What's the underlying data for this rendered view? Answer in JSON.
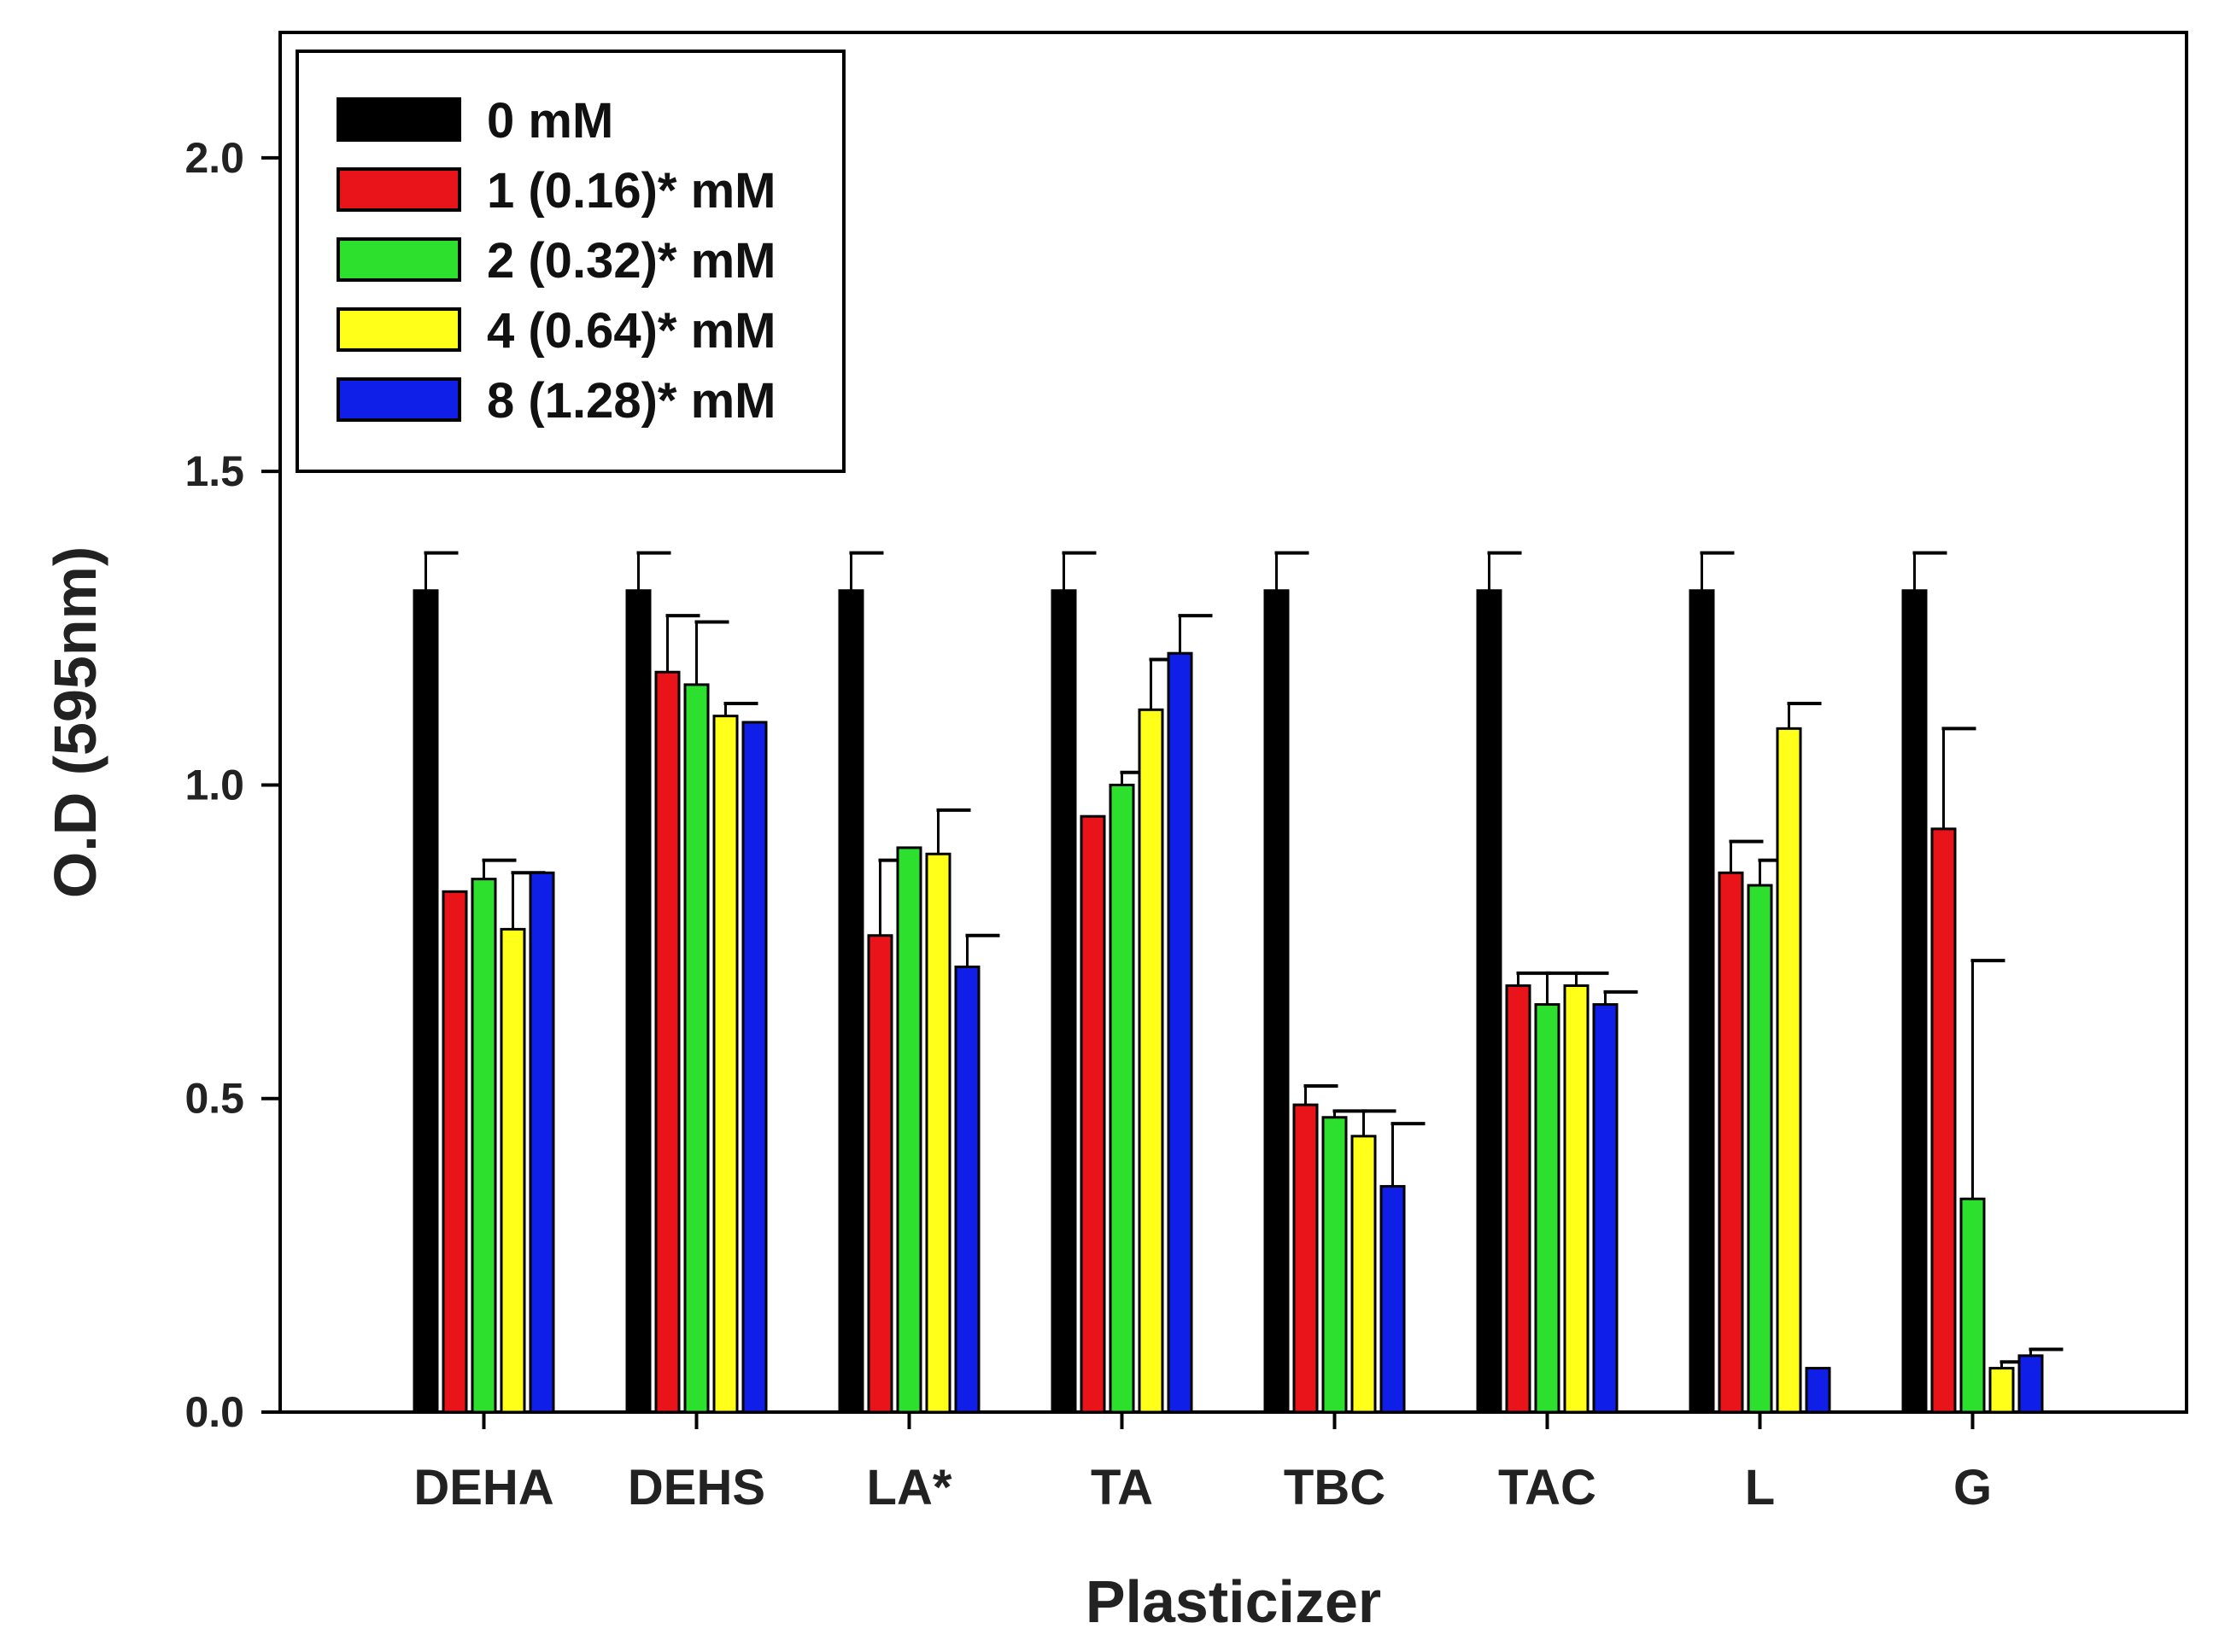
{
  "chart_data": {
    "type": "bar",
    "xlabel": "Plasticizer",
    "ylabel": "O.D (595nm)",
    "ylim": [
      0,
      2.2
    ],
    "yticks": [
      "0.0",
      "0.5",
      "1.0",
      "1.5",
      "2.0"
    ],
    "legend_position": "top-left",
    "categories": [
      "DEHA",
      "DEHS",
      "LA*",
      "TA",
      "TBC",
      "TAC",
      "L",
      "G"
    ],
    "series": [
      {
        "name": "0 mM",
        "color": "#000000",
        "values": [
          1.31,
          1.31,
          1.31,
          1.31,
          1.31,
          1.31,
          1.31,
          1.31
        ],
        "errors": [
          0.06,
          0.06,
          0.06,
          0.06,
          0.06,
          0.06,
          0.06,
          0.06
        ]
      },
      {
        "name": "1 (0.16)* mM",
        "color": "#e8141a",
        "values": [
          0.83,
          1.18,
          0.76,
          0.95,
          0.49,
          0.68,
          0.86,
          0.93
        ],
        "errors": [
          0.0,
          0.09,
          0.12,
          0.0,
          0.03,
          0.02,
          0.05,
          0.16
        ]
      },
      {
        "name": "2 (0.32)* mM",
        "color": "#2ee02e",
        "values": [
          0.85,
          1.16,
          0.9,
          1.0,
          0.47,
          0.65,
          0.84,
          0.34
        ],
        "errors": [
          0.03,
          0.1,
          0.0,
          0.02,
          0.01,
          0.05,
          0.04,
          0.38
        ]
      },
      {
        "name": "4 (0.64)* mM",
        "color": "#ffff1a",
        "values": [
          0.77,
          1.11,
          0.89,
          1.12,
          0.44,
          0.68,
          1.09,
          0.07
        ],
        "errors": [
          0.09,
          0.02,
          0.07,
          0.08,
          0.04,
          0.02,
          0.04,
          0.01
        ]
      },
      {
        "name": "8 (1.28)* mM",
        "color": "#0f1fe8",
        "values": [
          0.86,
          1.1,
          0.71,
          1.21,
          0.36,
          0.65,
          0.07,
          0.09
        ],
        "errors": [
          0.0,
          0.0,
          0.05,
          0.06,
          0.1,
          0.02,
          0.0,
          0.01
        ]
      }
    ]
  }
}
